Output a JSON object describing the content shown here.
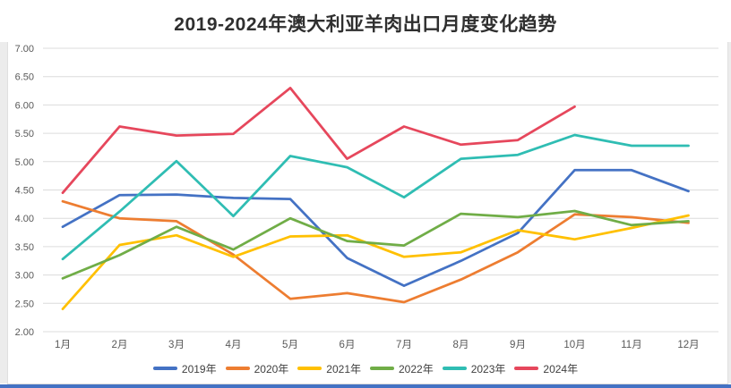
{
  "chart_data": {
    "type": "line",
    "title": "2019-2024年澳大利亚羊肉出口月度变化趋势",
    "categories": [
      "1月",
      "2月",
      "3月",
      "4月",
      "5月",
      "6月",
      "7月",
      "8月",
      "9月",
      "10月",
      "11月",
      "12月"
    ],
    "series": [
      {
        "name": "2019年",
        "color": "#4472C4",
        "values": [
          3.85,
          4.41,
          4.42,
          4.36,
          4.34,
          3.3,
          2.81,
          3.25,
          3.74,
          4.85,
          4.85,
          4.48
        ]
      },
      {
        "name": "2020年",
        "color": "#ED7D31",
        "values": [
          4.3,
          4.0,
          3.95,
          3.36,
          2.58,
          2.68,
          2.52,
          2.92,
          3.4,
          4.07,
          4.02,
          3.92
        ]
      },
      {
        "name": "2021年",
        "color": "#FFC000",
        "values": [
          2.4,
          3.53,
          3.7,
          3.32,
          3.68,
          3.7,
          3.32,
          3.4,
          3.79,
          3.63,
          3.83,
          4.05
        ]
      },
      {
        "name": "2022年",
        "color": "#70AD47",
        "values": [
          2.94,
          3.35,
          3.85,
          3.45,
          4.0,
          3.6,
          3.52,
          4.08,
          4.02,
          4.13,
          3.88,
          3.95
        ]
      },
      {
        "name": "2023年",
        "color": "#2FBDB3",
        "values": [
          3.28,
          4.12,
          5.01,
          4.04,
          5.1,
          4.9,
          4.37,
          5.05,
          5.12,
          5.47,
          5.28,
          5.28
        ]
      },
      {
        "name": "2024年",
        "color": "#E6475C",
        "values": [
          4.45,
          5.62,
          5.46,
          5.49,
          6.3,
          5.05,
          5.62,
          5.3,
          5.38,
          5.97,
          null,
          null
        ]
      }
    ],
    "ylim": [
      2.0,
      7.0
    ],
    "ytick_labels": [
      "7.00",
      "6.50",
      "6.00",
      "5.50",
      "5.00",
      "4.50",
      "4.00",
      "3.50",
      "3.00",
      "2.50",
      "2.00"
    ],
    "grid": true,
    "legend_position": "bottom"
  },
  "colors": {
    "gridline": "#DCDCDC",
    "axis_text": "#595959",
    "title_text": "#2F2F2F",
    "bottom_strip": "#4472C4"
  }
}
